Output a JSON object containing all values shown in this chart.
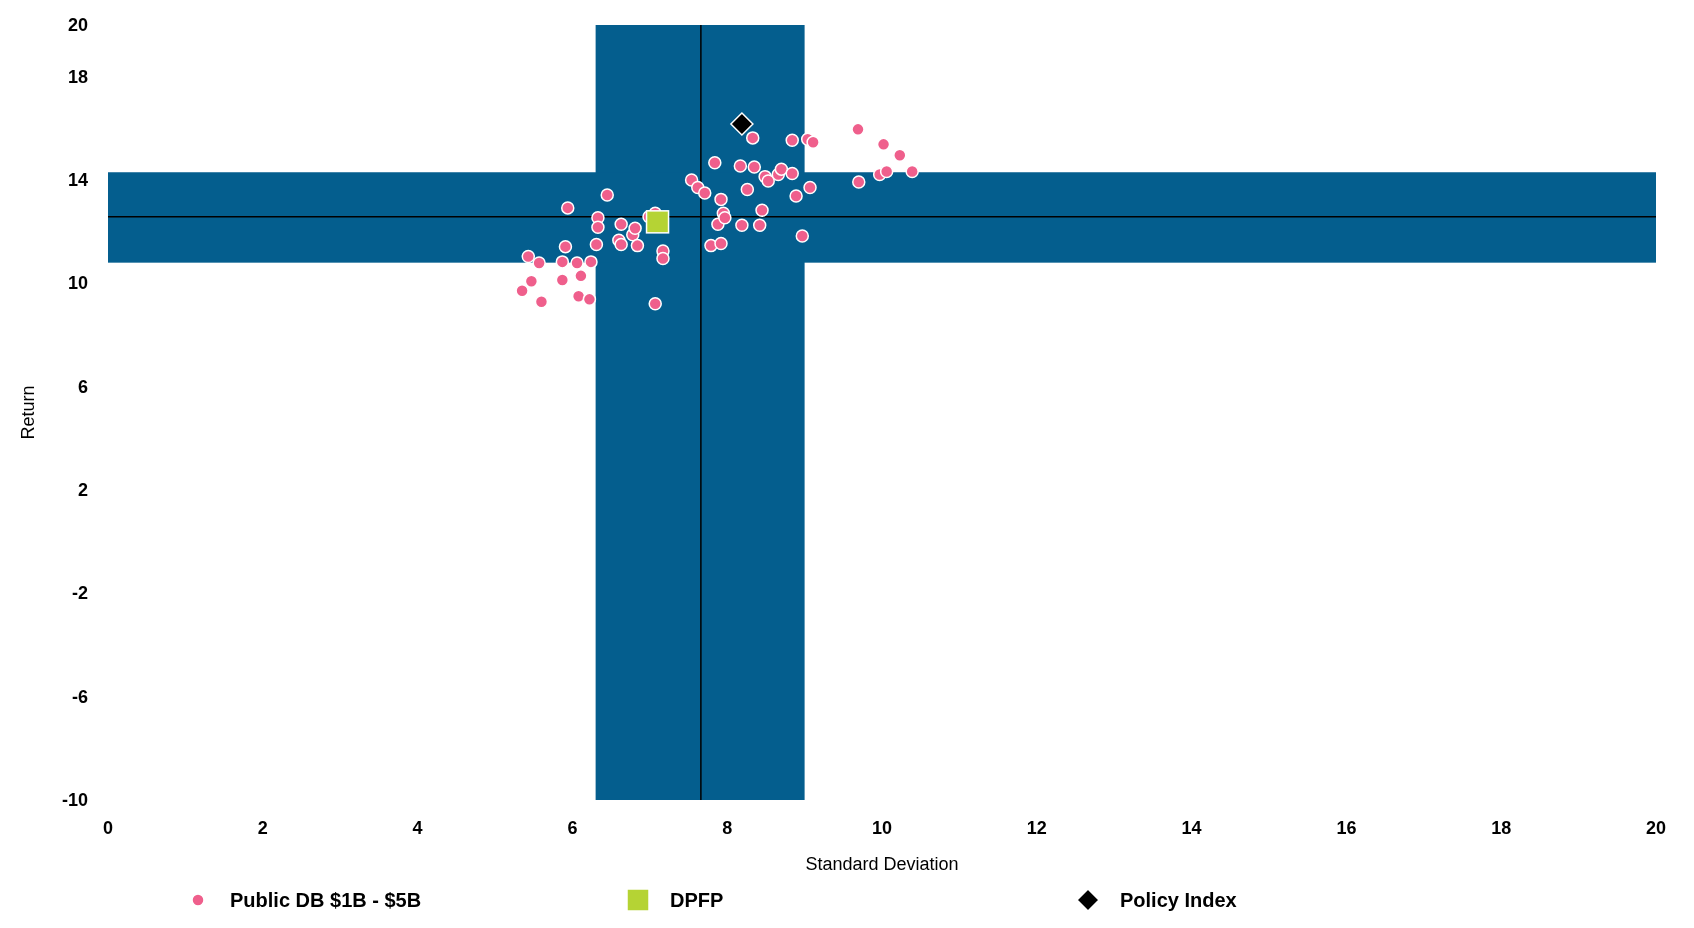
{
  "chart_data": {
    "type": "scatter",
    "xlabel": "Standard Deviation",
    "ylabel": "Return",
    "xlim": [
      0,
      20
    ],
    "xticks": [
      0,
      2,
      4,
      6,
      8,
      10,
      12,
      14,
      16,
      18,
      20
    ],
    "ylim": [
      -10,
      20
    ],
    "yticks": [
      -10,
      -6,
      -2,
      2,
      6,
      10,
      14,
      18,
      20
    ],
    "grid": false,
    "legend": "bottom",
    "bands": [
      {
        "axis": "x",
        "from": 6.3,
        "to": 9.0,
        "color": "#045e8e"
      },
      {
        "axis": "y",
        "from": 10.8,
        "to": 14.3,
        "color": "#045e8e"
      }
    ],
    "ref_lines": [
      {
        "axis": "x",
        "value": 7.66,
        "color": "#000000"
      },
      {
        "axis": "y",
        "value": 12.58,
        "color": "#000000"
      }
    ],
    "series": [
      {
        "name": "Public DB $1B - $5B",
        "color": "#ef5f8c",
        "marker": "circle",
        "x": [
          5.35,
          5.43,
          5.47,
          5.57,
          5.6,
          5.87,
          5.87,
          5.91,
          5.94,
          6.06,
          6.08,
          6.11,
          6.22,
          6.24,
          6.31,
          6.33,
          6.33,
          6.45,
          6.6,
          6.63,
          6.63,
          6.78,
          6.81,
          6.84,
          6.99,
          7.07,
          7.07,
          7.17,
          7.17,
          7.54,
          7.62,
          7.71,
          7.79,
          7.84,
          7.92,
          7.88,
          7.92,
          7.95,
          7.97,
          8.17,
          8.19,
          8.26,
          8.33,
          8.35,
          8.42,
          8.45,
          8.49,
          8.53,
          8.66,
          8.7,
          8.84,
          8.84,
          8.89,
          8.97,
          9.04,
          9.07,
          9.11,
          9.69,
          9.7,
          9.97,
          10.02,
          10.06,
          10.23,
          10.39
        ],
        "values": [
          9.71,
          11.04,
          10.08,
          10.79,
          9.29,
          10.83,
          10.13,
          11.42,
          12.92,
          10.79,
          9.5,
          10.29,
          9.38,
          10.83,
          11.5,
          12.54,
          12.17,
          13.42,
          11.67,
          12.29,
          11.5,
          11.88,
          12.13,
          11.46,
          12.58,
          12.71,
          9.21,
          11.25,
          10.96,
          14.0,
          13.71,
          13.5,
          11.46,
          14.67,
          13.25,
          12.29,
          11.54,
          12.71,
          12.54,
          14.54,
          12.25,
          13.63,
          15.63,
          14.5,
          12.25,
          12.83,
          14.13,
          13.96,
          14.21,
          14.42,
          15.54,
          14.25,
          13.38,
          11.83,
          15.58,
          13.71,
          15.46,
          15.96,
          13.92,
          14.21,
          15.38,
          14.33,
          14.96,
          14.33
        ]
      },
      {
        "name": "DPFP",
        "color": "#b5d334",
        "marker": "square",
        "x": [
          7.1
        ],
        "values": [
          12.38
        ]
      },
      {
        "name": "Policy Index",
        "color": "#000000",
        "marker": "diamond",
        "x": [
          8.19
        ],
        "values": [
          16.17
        ]
      }
    ]
  }
}
